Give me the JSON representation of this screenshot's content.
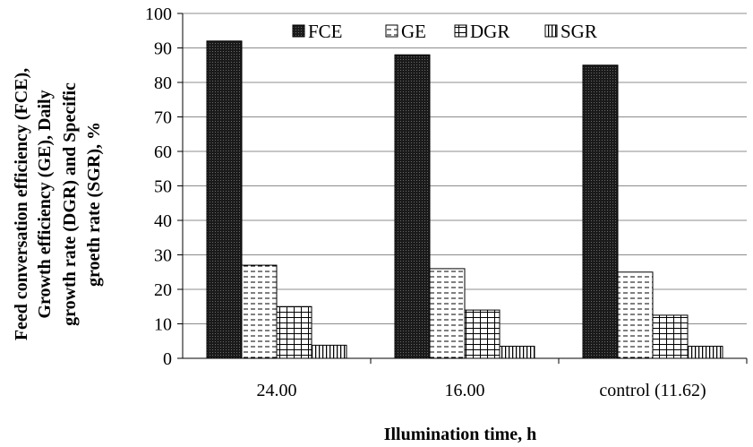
{
  "chart_data": {
    "type": "bar",
    "categories": [
      "24.00",
      "16.00",
      "control (11.62)"
    ],
    "series": [
      {
        "name": "FCE",
        "values": [
          92,
          88,
          85
        ]
      },
      {
        "name": "GE",
        "values": [
          27,
          26,
          25
        ]
      },
      {
        "name": "DGR",
        "values": [
          15,
          14,
          12.5
        ]
      },
      {
        "name": "SGR",
        "values": [
          3.8,
          3.5,
          3.5
        ]
      }
    ],
    "ylim": [
      0,
      100
    ],
    "yticks": [
      0,
      10,
      20,
      30,
      40,
      50,
      60,
      70,
      80,
      90,
      100
    ],
    "ylabel_lines": [
      "Feed conversation efficiency (FCE),",
      "Growth efficiency (GE), Daily",
      "growth rate (DGR) and Specific",
      "groeth rate (SGR), %"
    ],
    "xlabel": "Illumination  time, h",
    "grid": true,
    "legend_position": "top"
  }
}
